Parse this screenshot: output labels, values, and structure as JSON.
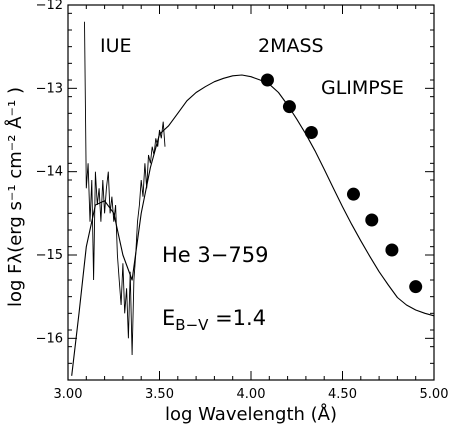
{
  "chart_data": {
    "type": "line",
    "xlabel": "log Wavelength (Å)",
    "ylabel": "log Fλ(erg s⁻¹ cm⁻² Å⁻¹ )",
    "xlim": [
      3.0,
      5.0
    ],
    "ylim": [
      -16.5,
      -12.0
    ],
    "x_ticks": [
      "3.00",
      "3.50",
      "4.00",
      "4.50",
      "5.00"
    ],
    "x_tick_values": [
      3.0,
      3.5,
      4.0,
      4.5,
      5.0
    ],
    "y_ticks": [
      "−12",
      "−13",
      "−14",
      "−15",
      "−16"
    ],
    "y_tick_values": [
      -12,
      -13,
      -14,
      -15,
      -16
    ],
    "annotations": {
      "iue": "IUE",
      "twomass": "2MASS",
      "glimpse": "GLIMPSE",
      "star": "He 3−759",
      "ebv_main": "E",
      "ebv_sub": "B−V",
      "ebv_value": " =1.4"
    },
    "series": [
      {
        "type": "line",
        "x": [
          3.02,
          3.06,
          3.1,
          3.15,
          3.2,
          3.25,
          3.3,
          3.35,
          3.4,
          3.45,
          3.5,
          3.55,
          3.6,
          3.65,
          3.7,
          3.75,
          3.8,
          3.85,
          3.9,
          3.95,
          4.0,
          4.05,
          4.1,
          4.15,
          4.2,
          4.25,
          4.3,
          4.35,
          4.4,
          4.45,
          4.5,
          4.55,
          4.6,
          4.65,
          4.7,
          4.75,
          4.8,
          4.85,
          4.9,
          4.95,
          5.0
        ],
        "values": [
          -16.45,
          -15.7,
          -14.9,
          -14.4,
          -14.35,
          -14.5,
          -15.0,
          -15.3,
          -14.5,
          -13.95,
          -13.55,
          -13.45,
          -13.3,
          -13.15,
          -13.05,
          -12.98,
          -12.92,
          -12.88,
          -12.85,
          -12.84,
          -12.86,
          -12.9,
          -12.95,
          -13.05,
          -13.2,
          -13.37,
          -13.55,
          -13.75,
          -13.97,
          -14.2,
          -14.42,
          -14.63,
          -14.83,
          -15.02,
          -15.2,
          -15.36,
          -15.51,
          -15.6,
          -15.66,
          -15.7,
          -15.73
        ]
      },
      {
        "type": "spectrum",
        "x": [
          3.09,
          3.1,
          3.11,
          3.12,
          3.13,
          3.14,
          3.15,
          3.16,
          3.17,
          3.18,
          3.19,
          3.2,
          3.21,
          3.22,
          3.23,
          3.24,
          3.25,
          3.26,
          3.27,
          3.28,
          3.29,
          3.3,
          3.31,
          3.32,
          3.33,
          3.34,
          3.35,
          3.36,
          3.37,
          3.38,
          3.39,
          3.4,
          3.41,
          3.42,
          3.43,
          3.44,
          3.45,
          3.46,
          3.47,
          3.48,
          3.49,
          3.5,
          3.51,
          3.52,
          3.53
        ],
        "values": [
          -12.2,
          -14.2,
          -13.9,
          -14.6,
          -14.1,
          -15.3,
          -14.0,
          -14.4,
          -14.2,
          -14.6,
          -14.1,
          -14.5,
          -14.2,
          -14.0,
          -14.5,
          -14.3,
          -14.6,
          -14.4,
          -15.0,
          -15.3,
          -15.6,
          -15.1,
          -15.7,
          -15.4,
          -16.0,
          -15.2,
          -16.2,
          -15.3,
          -15.0,
          -14.6,
          -14.4,
          -14.1,
          -14.3,
          -13.9,
          -14.2,
          -13.8,
          -13.9,
          -13.7,
          -13.8,
          -13.6,
          -13.7,
          -13.5,
          -13.6,
          -13.4,
          -13.7
        ]
      },
      {
        "type": "scatter",
        "x": [
          4.09,
          4.21,
          4.33,
          4.56,
          4.66,
          4.77,
          4.9
        ],
        "values": [
          -12.9,
          -13.22,
          -13.53,
          -14.27,
          -14.58,
          -14.94,
          -15.38
        ]
      }
    ]
  }
}
